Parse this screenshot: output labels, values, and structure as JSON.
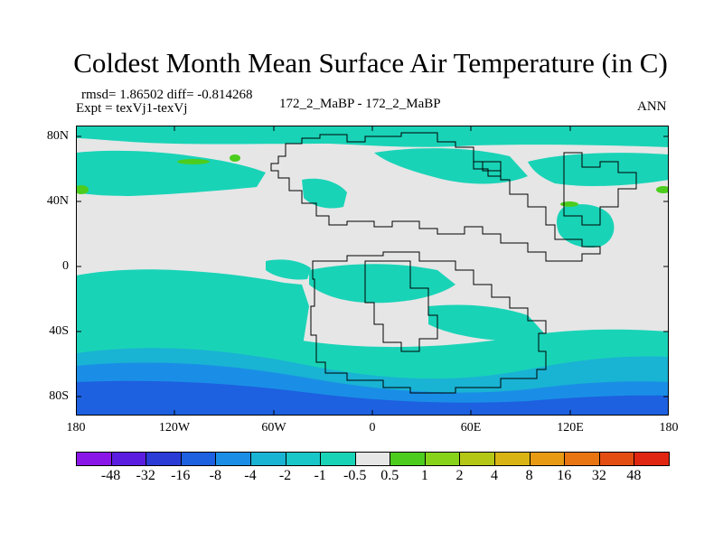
{
  "title": "Coldest Month Mean Surface Air Temperature (in C)",
  "stats": "rmsd= 1.86502 diff= -0.814268",
  "expt": "Expt = texVj1-texVj",
  "case_label": "172_2_MaBP - 172_2_MaBP",
  "season": "ANN",
  "map": {
    "lat_labels": [
      "80N",
      "40N",
      "0",
      "40S",
      "80S"
    ],
    "lon_labels": [
      "180",
      "120W",
      "60W",
      "0",
      "60E",
      "120E",
      "180"
    ],
    "colors": {
      "neutral": "#e6e6e6",
      "light_cool": "#19d3b7",
      "cool": "#19b3d3",
      "blue": "#1a8ee6",
      "deep_blue": "#1d60e0",
      "green": "#4ccd1e",
      "coastline": "#000000"
    }
  },
  "colorbar": {
    "labels": [
      "-48",
      "-32",
      "-16",
      "-8",
      "-4",
      "-2",
      "-1",
      "-0.5",
      "0.5",
      "1",
      "2",
      "4",
      "8",
      "16",
      "32",
      "48"
    ],
    "colors": [
      "#8a17e8",
      "#5b1ee0",
      "#2a3bd6",
      "#1d60e0",
      "#1a8ee6",
      "#19b3d3",
      "#19c7c8",
      "#19d3b7",
      "#e6e6e6",
      "#4ccd1e",
      "#87d31a",
      "#b5c716",
      "#d8b514",
      "#e89a13",
      "#e87512",
      "#e44d11",
      "#e02610"
    ]
  }
}
